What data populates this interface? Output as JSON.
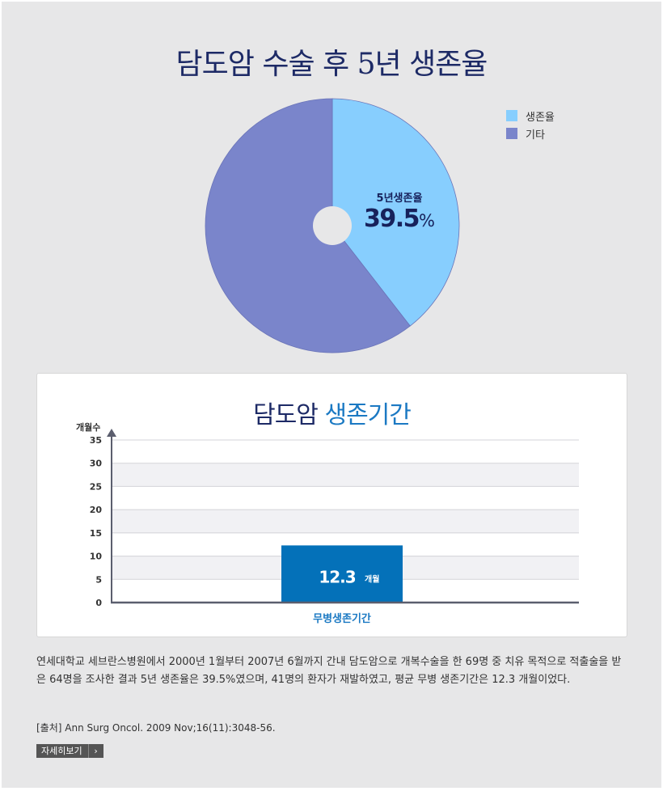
{
  "page": {
    "title": "담도암 수술 후 5년 생존율"
  },
  "chart_data": [
    {
      "type": "pie",
      "title": "담도암 수술 후 5년 생존율",
      "slices": [
        {
          "label": "생존율",
          "value": 39.5,
          "color": "#87cefe"
        },
        {
          "label": "기타",
          "value": 60.5,
          "color": "#7a85cb"
        }
      ],
      "center_label": "5년생존율",
      "center_value": "39.5",
      "center_unit": "%",
      "legend_position": "top-right",
      "hole": true
    },
    {
      "type": "bar",
      "title_part1": "담도암",
      "title_part2": "생존기간",
      "categories": [
        "무병생존기간"
      ],
      "values": [
        12.3
      ],
      "value_label": "12.3",
      "value_unit": "개월",
      "ylabel": "개월수",
      "xlabel": "",
      "ylim": [
        0,
        35
      ],
      "yticks": [
        0,
        5,
        10,
        15,
        20,
        25,
        30,
        35
      ],
      "bar_color": "#0471b9",
      "grid": true
    }
  ],
  "description": "연세대학교 세브란스병원에서 2000년 1월부터 2007년 6월까지 간내 담도암으로 개복수술을 한 69명 중 치유 목적으로 적출술을 받은 64명을 조사한 결과 5년 생존율은 39.5%였으며, 41명의 환자가 재발하였고, 평균 무병 생존기간은 12.3 개월이었다.",
  "source": "[출처] Ann Surg Oncol. 2009 Nov;16(11):3048-56.",
  "more_button": {
    "label": "자세히보기",
    "arrow": "›"
  }
}
